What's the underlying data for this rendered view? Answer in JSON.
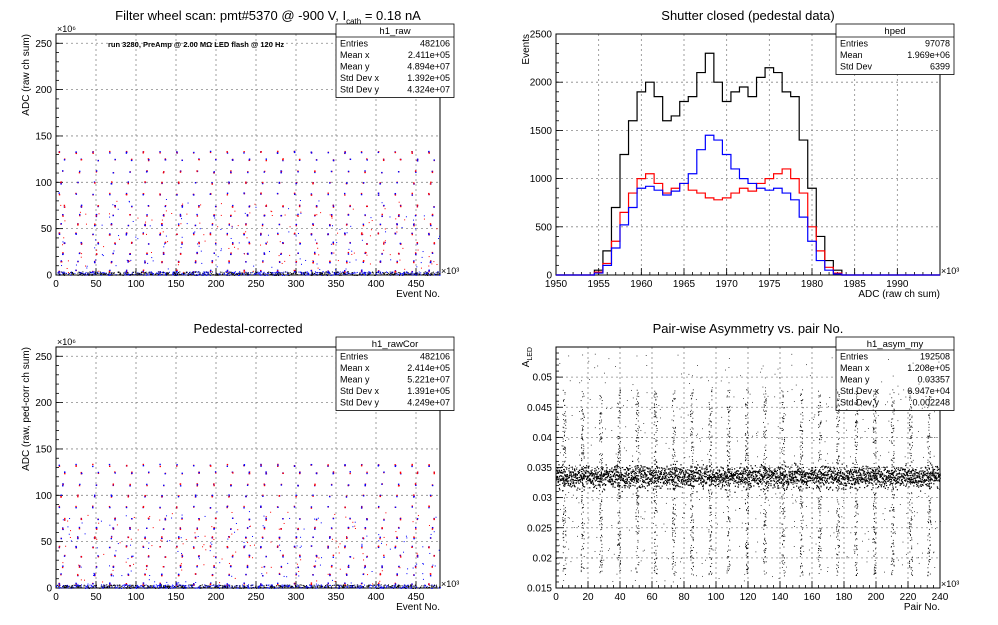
{
  "chart_data": [
    {
      "type": "scatter",
      "title": "Filter wheel scan: pmt#5370 @  -900 V, I",
      "title_sub": "cath",
      "title_tail": " = 0.18 nA",
      "annotation": "run 3280, PreAmp @ 2.00 MΩ LED flash @  120 Hz",
      "xlabel": "Event No.",
      "ylabel": "ADC (raw ch sum)",
      "x_exponent": "×10³",
      "y_exponent": "×10⁶",
      "xlim": [
        0,
        480
      ],
      "ylim": [
        0,
        260
      ],
      "x_ticks": [
        0,
        50,
        100,
        150,
        200,
        250,
        300,
        350,
        400,
        450
      ],
      "y_ticks": [
        0,
        50,
        100,
        150,
        200,
        250
      ],
      "grid": true,
      "stats": {
        "name": "h1_raw",
        "rows": [
          [
            "Entries",
            "482106"
          ],
          [
            "Mean x",
            "2.411e+05"
          ],
          [
            "Mean y",
            "4.894e+07"
          ],
          [
            "Std Dev x",
            "1.392e+05"
          ],
          [
            "Std Dev y",
            "4.324e+07"
          ]
        ]
      },
      "levels": [
        5,
        15,
        24,
        35,
        45,
        55,
        65,
        75,
        88,
        100,
        112,
        125,
        133
      ],
      "colors": [
        "#ff0000",
        "#0000ff",
        "#000000"
      ]
    },
    {
      "type": "line",
      "title": "Shutter closed (pedestal data)",
      "xlabel": "ADC (raw ch sum)",
      "ylabel": "Events",
      "x_exponent": "×10³",
      "xlim": [
        1950,
        1995
      ],
      "ylim": [
        0,
        2500
      ],
      "x_ticks": [
        1950,
        1955,
        1960,
        1965,
        1970,
        1975,
        1980,
        1985,
        1990
      ],
      "y_ticks": [
        0,
        500,
        1000,
        1500,
        2000,
        2500
      ],
      "grid": true,
      "stats": {
        "name": "hped",
        "rows": [
          [
            "Entries",
            "97078"
          ],
          [
            "Mean",
            "1.969e+06"
          ],
          [
            "Std Dev",
            "6399"
          ]
        ]
      },
      "series": [
        {
          "color": "#000000",
          "x": [
            1954,
            1955,
            1956,
            1957,
            1958,
            1959,
            1960,
            1961,
            1962,
            1963,
            1964,
            1965,
            1966,
            1967,
            1968,
            1969,
            1970,
            1971,
            1972,
            1973,
            1974,
            1975,
            1976,
            1977,
            1978,
            1979,
            1980,
            1981,
            1982,
            1983,
            1984
          ],
          "values": [
            0,
            50,
            250,
            700,
            1250,
            1600,
            1900,
            2000,
            1850,
            1600,
            1650,
            1800,
            1850,
            2100,
            2300,
            2000,
            1800,
            1900,
            1950,
            1850,
            2050,
            2150,
            2100,
            1900,
            1850,
            1400,
            900,
            400,
            150,
            50,
            0
          ]
        },
        {
          "color": "#ff0000",
          "x": [
            1954,
            1955,
            1956,
            1957,
            1958,
            1959,
            1960,
            1961,
            1962,
            1963,
            1964,
            1965,
            1966,
            1967,
            1968,
            1969,
            1970,
            1971,
            1972,
            1973,
            1974,
            1975,
            1976,
            1977,
            1978,
            1979,
            1980,
            1981,
            1982,
            1983,
            1984
          ],
          "values": [
            0,
            30,
            120,
            350,
            650,
            850,
            1000,
            1050,
            950,
            850,
            900,
            950,
            880,
            850,
            800,
            780,
            800,
            850,
            900,
            870,
            950,
            1000,
            1050,
            1100,
            1000,
            850,
            500,
            250,
            80,
            20,
            0
          ]
        },
        {
          "color": "#0000ff",
          "x": [
            1954,
            1955,
            1956,
            1957,
            1958,
            1959,
            1960,
            1961,
            1962,
            1963,
            1964,
            1965,
            1966,
            1967,
            1968,
            1969,
            1970,
            1971,
            1972,
            1973,
            1974,
            1975,
            1976,
            1977,
            1978,
            1979,
            1980,
            1981,
            1982,
            1983,
            1984
          ],
          "values": [
            0,
            20,
            100,
            280,
            520,
            700,
            900,
            920,
            880,
            830,
            870,
            950,
            1050,
            1300,
            1450,
            1400,
            1250,
            1100,
            1000,
            950,
            900,
            880,
            900,
            850,
            780,
            600,
            350,
            150,
            50,
            10,
            0
          ]
        }
      ]
    },
    {
      "type": "scatter",
      "title": "Pedestal-corrected",
      "xlabel": "Event No.",
      "ylabel": "ADC (raw, ped-corr ch sum)",
      "x_exponent": "×10³",
      "y_exponent": "×10⁶",
      "xlim": [
        0,
        480
      ],
      "ylim": [
        0,
        260
      ],
      "x_ticks": [
        0,
        50,
        100,
        150,
        200,
        250,
        300,
        350,
        400,
        450
      ],
      "y_ticks": [
        0,
        50,
        100,
        150,
        200,
        250
      ],
      "grid": true,
      "stats": {
        "name": "h1_rawCor",
        "rows": [
          [
            "Entries",
            "482106"
          ],
          [
            "Mean x",
            "2.414e+05"
          ],
          [
            "Mean y",
            "5.221e+07"
          ],
          [
            "Std Dev x",
            "1.391e+05"
          ],
          [
            "Std Dev y",
            "4.249e+07"
          ]
        ]
      },
      "levels": [
        5,
        15,
        24,
        35,
        45,
        55,
        65,
        75,
        88,
        100,
        112,
        125,
        133
      ],
      "colors": [
        "#ff0000",
        "#0000ff",
        "#000000"
      ]
    },
    {
      "type": "scatter",
      "title": "Pair-wise Asymmetry vs. pair No.",
      "xlabel": "Pair No.",
      "ylabel": "A",
      "ylabel_sub": "LED",
      "x_exponent": "×10³",
      "xlim": [
        0,
        240
      ],
      "ylim": [
        0.015,
        0.055
      ],
      "x_ticks": [
        0,
        20,
        40,
        60,
        80,
        100,
        120,
        140,
        160,
        180,
        200,
        220,
        240
      ],
      "y_ticks": [
        0.015,
        0.02,
        0.025,
        0.03,
        0.035,
        0.04,
        0.045,
        0.05
      ],
      "y_tick_labels": [
        "0.015",
        "0.02",
        "0.025",
        "0.03",
        "0.035",
        "0.04",
        "0.045",
        "0.05"
      ],
      "grid": true,
      "stats": {
        "name": "h1_asym_my",
        "rows": [
          [
            "Entries",
            "192508"
          ],
          [
            "Mean x",
            "1.208e+05"
          ],
          [
            "Mean y",
            "0.03357"
          ],
          [
            "Std Dev x",
            "6.947e+04"
          ],
          [
            "Std Dev y",
            "0.002248"
          ]
        ]
      },
      "band_center": 0.0335,
      "colors": [
        "#000000"
      ]
    }
  ]
}
